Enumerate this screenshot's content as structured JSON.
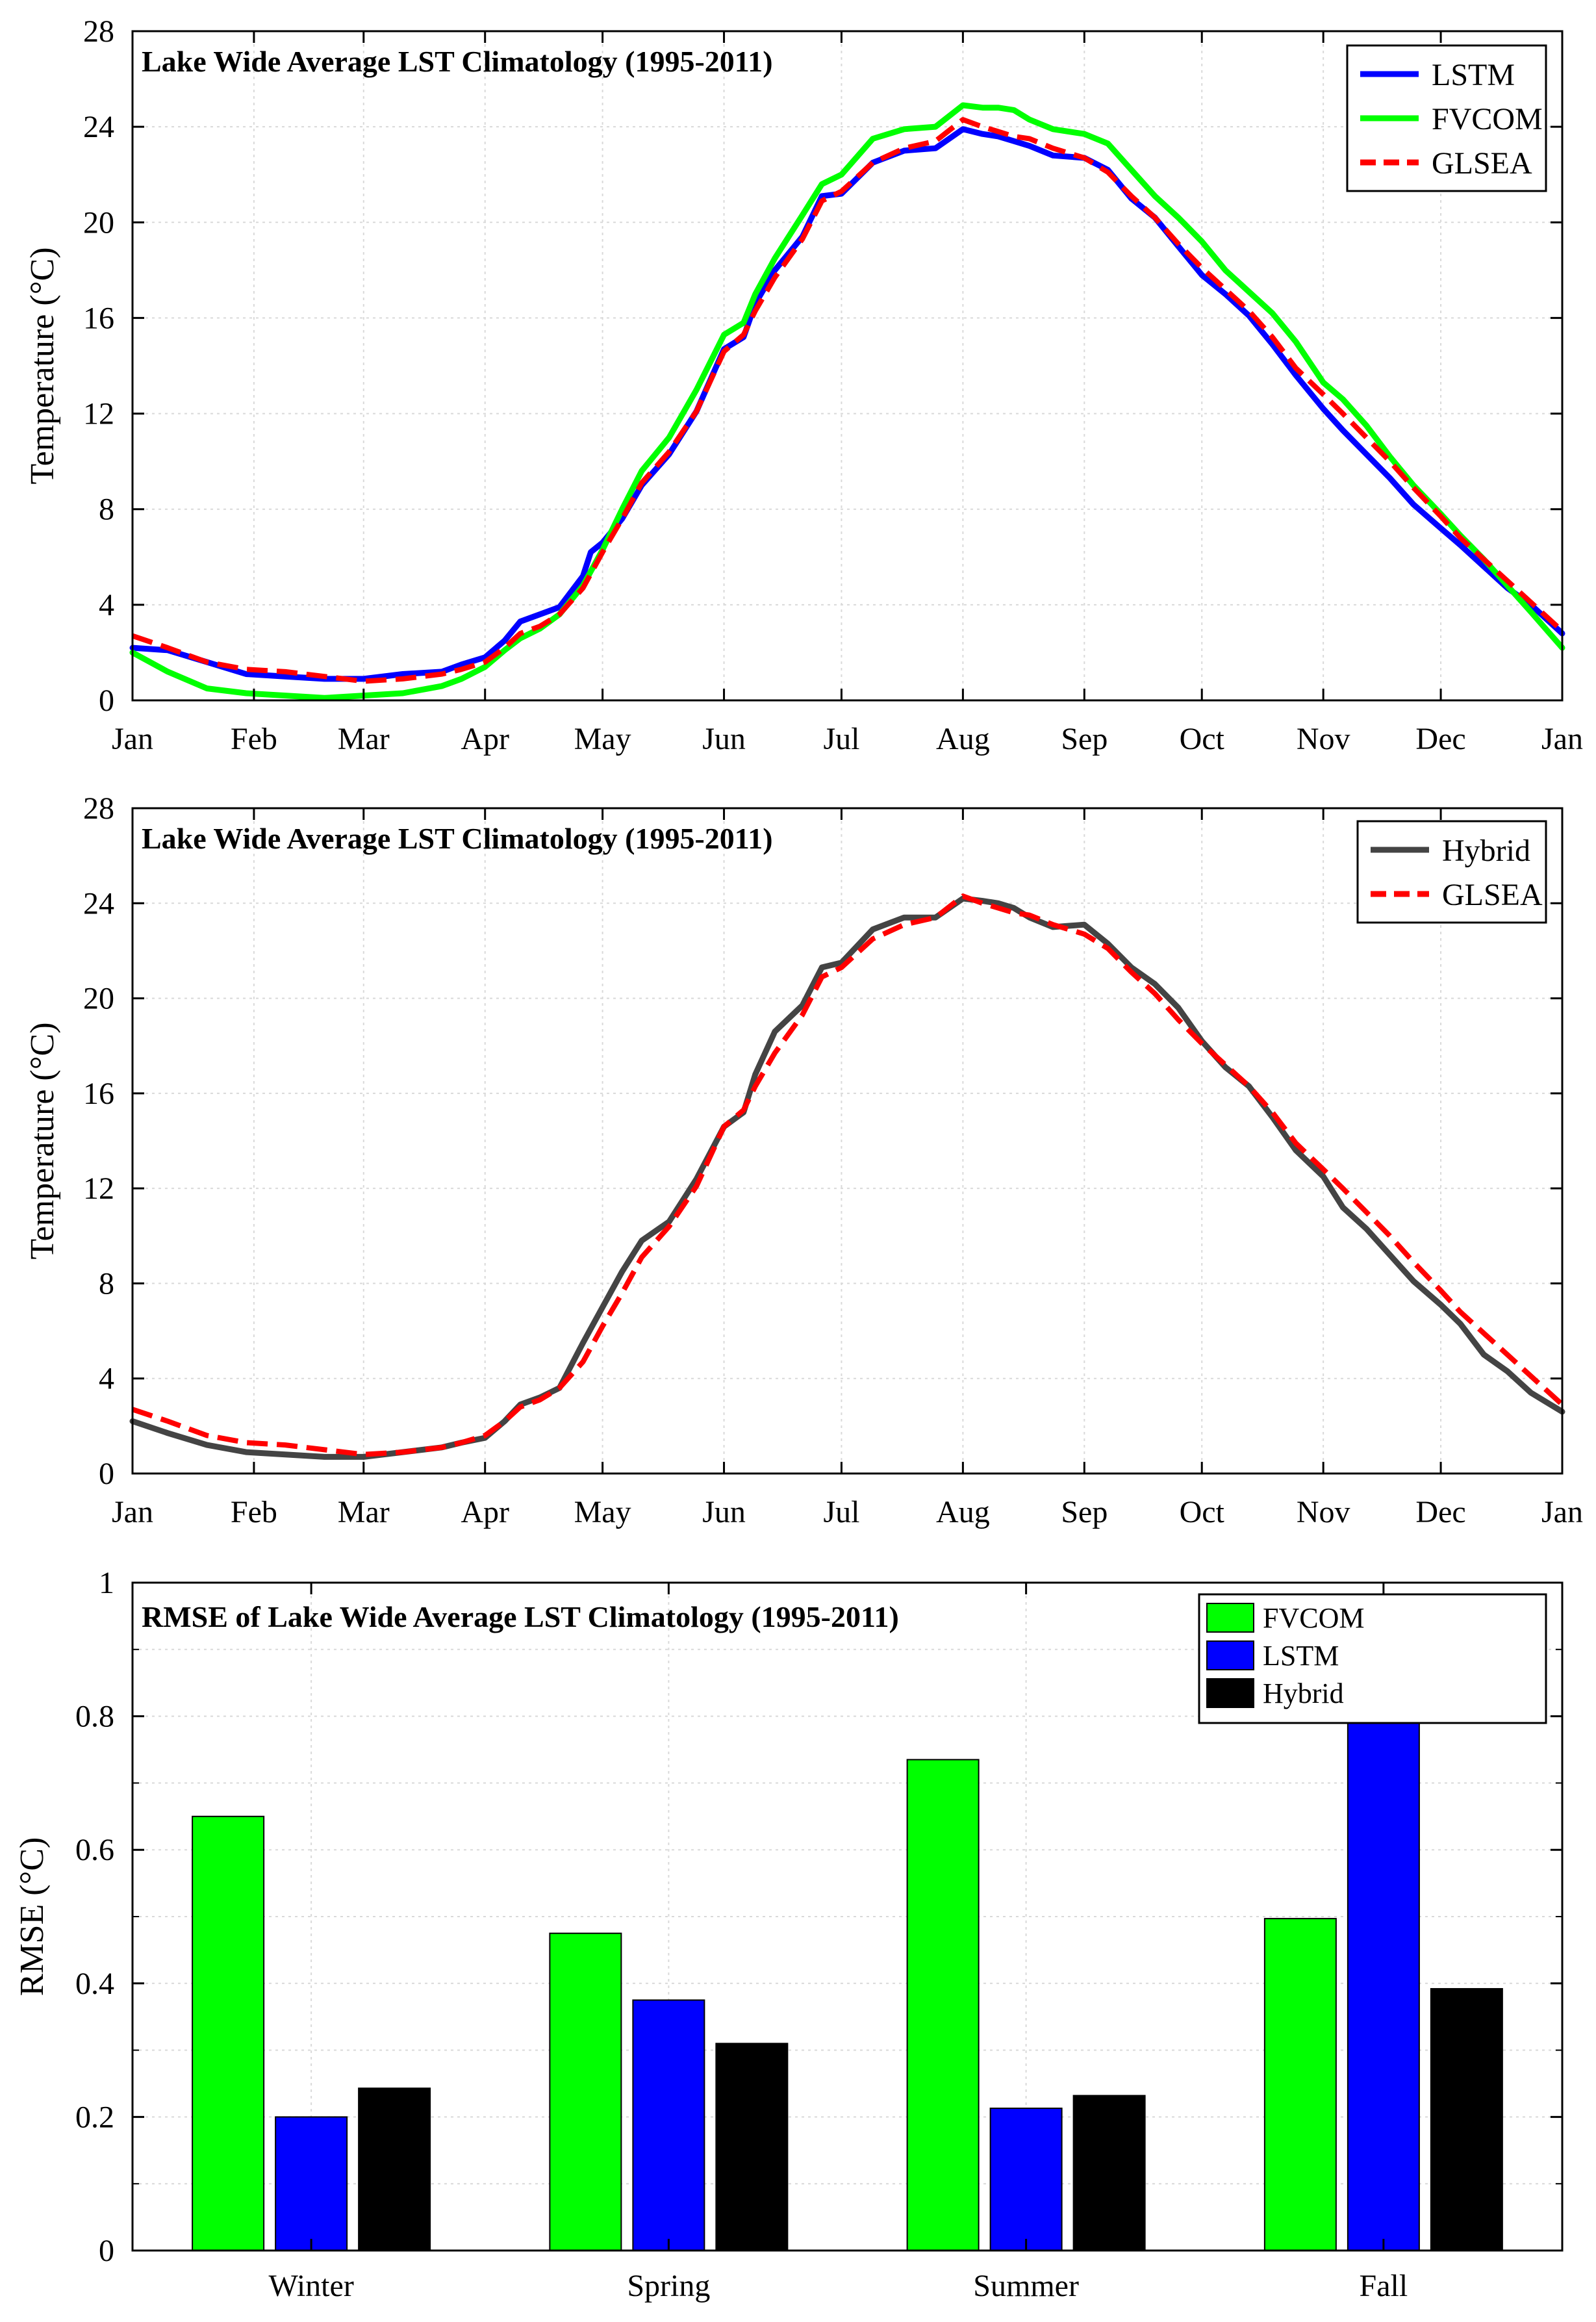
{
  "chart_data": [
    {
      "type": "line",
      "title": "Lake Wide Average LST Climatology (1995-2011)",
      "xlabel": "",
      "ylabel": "Temperature (°C)",
      "xlim": [
        1,
        366
      ],
      "ylim": [
        0,
        28
      ],
      "yticks": [
        0,
        4,
        8,
        12,
        16,
        20,
        24,
        28
      ],
      "xticks": [
        {
          "day": 1,
          "label": "Jan"
        },
        {
          "day": 32,
          "label": "Feb"
        },
        {
          "day": 60,
          "label": "Mar"
        },
        {
          "day": 91,
          "label": "Apr"
        },
        {
          "day": 121,
          "label": "May"
        },
        {
          "day": 152,
          "label": "Jun"
        },
        {
          "day": 182,
          "label": "Jul"
        },
        {
          "day": 213,
          "label": "Aug"
        },
        {
          "day": 244,
          "label": "Sep"
        },
        {
          "day": 274,
          "label": "Oct"
        },
        {
          "day": 305,
          "label": "Nov"
        },
        {
          "day": 335,
          "label": "Dec"
        },
        {
          "day": 366,
          "label": "Jan"
        }
      ],
      "grid": true,
      "legend_position": "top-right",
      "series": [
        {
          "name": "LSTM",
          "color": "#0000ff",
          "style": "solid",
          "x": [
            1,
            10,
            20,
            30,
            40,
            50,
            60,
            70,
            80,
            85,
            91,
            96,
            100,
            105,
            110,
            116,
            118,
            121,
            126,
            131,
            138,
            145,
            152,
            157,
            160,
            165,
            172,
            177,
            182,
            190,
            198,
            206,
            213,
            218,
            222,
            226,
            230,
            236,
            244,
            250,
            256,
            262,
            268,
            274,
            280,
            286,
            292,
            298,
            305,
            310,
            316,
            322,
            328,
            335,
            340,
            346,
            352,
            358,
            366
          ],
          "y": [
            2.2,
            2.1,
            1.6,
            1.1,
            1.0,
            0.9,
            0.9,
            1.1,
            1.2,
            1.5,
            1.8,
            2.5,
            3.3,
            3.6,
            3.9,
            5.2,
            6.2,
            6.6,
            7.6,
            9.0,
            10.3,
            12.1,
            14.7,
            15.2,
            16.6,
            18.0,
            19.4,
            21.1,
            21.2,
            22.5,
            23.0,
            23.1,
            23.9,
            23.7,
            23.6,
            23.4,
            23.2,
            22.8,
            22.7,
            22.2,
            21.0,
            20.2,
            19.0,
            17.8,
            17.0,
            16.1,
            14.9,
            13.6,
            12.2,
            11.3,
            10.3,
            9.3,
            8.2,
            7.2,
            6.5,
            5.6,
            4.7,
            4.0,
            2.8
          ]
        },
        {
          "name": "FVCOM",
          "color": "#00ff00",
          "style": "solid",
          "x": [
            1,
            10,
            20,
            30,
            40,
            50,
            60,
            70,
            80,
            85,
            91,
            96,
            100,
            105,
            110,
            116,
            121,
            126,
            131,
            138,
            145,
            152,
            157,
            160,
            165,
            172,
            177,
            182,
            190,
            198,
            206,
            213,
            218,
            222,
            226,
            230,
            236,
            244,
            250,
            256,
            262,
            268,
            274,
            280,
            286,
            292,
            298,
            305,
            310,
            316,
            322,
            328,
            335,
            340,
            346,
            352,
            358,
            366
          ],
          "y": [
            2.0,
            1.2,
            0.5,
            0.3,
            0.2,
            0.1,
            0.2,
            0.3,
            0.6,
            0.9,
            1.4,
            2.1,
            2.6,
            3.0,
            3.6,
            4.8,
            6.3,
            8.0,
            9.6,
            11.0,
            13.0,
            15.3,
            15.8,
            17.0,
            18.5,
            20.3,
            21.6,
            22.0,
            23.5,
            23.9,
            24.0,
            24.9,
            24.8,
            24.8,
            24.7,
            24.3,
            23.9,
            23.7,
            23.3,
            22.2,
            21.1,
            20.2,
            19.2,
            18.0,
            17.1,
            16.2,
            15.0,
            13.3,
            12.6,
            11.5,
            10.2,
            9.0,
            7.8,
            6.9,
            5.9,
            4.8,
            3.7,
            2.2
          ]
        },
        {
          "name": "GLSEA",
          "color": "#ff0000",
          "style": "dashed",
          "x": [
            1,
            10,
            20,
            30,
            40,
            50,
            60,
            70,
            80,
            85,
            91,
            96,
            100,
            105,
            110,
            116,
            121,
            126,
            131,
            138,
            145,
            152,
            157,
            160,
            165,
            172,
            177,
            182,
            190,
            198,
            206,
            213,
            218,
            222,
            226,
            230,
            236,
            244,
            250,
            256,
            262,
            268,
            274,
            280,
            286,
            292,
            298,
            305,
            310,
            316,
            322,
            328,
            335,
            340,
            346,
            352,
            358,
            366
          ],
          "y": [
            2.7,
            2.2,
            1.6,
            1.3,
            1.2,
            1.0,
            0.8,
            0.9,
            1.1,
            1.3,
            1.6,
            2.2,
            2.8,
            3.1,
            3.6,
            4.7,
            6.2,
            7.6,
            9.1,
            10.4,
            12.1,
            14.6,
            15.3,
            16.3,
            17.7,
            19.3,
            20.9,
            21.3,
            22.5,
            23.1,
            23.4,
            24.3,
            24.0,
            23.8,
            23.6,
            23.5,
            23.1,
            22.7,
            22.1,
            21.1,
            20.2,
            19.1,
            18.1,
            17.2,
            16.3,
            15.2,
            13.9,
            12.8,
            12.0,
            11.0,
            10.0,
            8.9,
            7.7,
            6.8,
            5.9,
            5.0,
            4.1,
            2.9
          ]
        }
      ]
    },
    {
      "type": "line",
      "title": "Lake Wide Average LST Climatology (1995-2011)",
      "xlabel": "",
      "ylabel": "Temperature (°C)",
      "xlim": [
        1,
        366
      ],
      "ylim": [
        0,
        28
      ],
      "yticks": [
        0,
        4,
        8,
        12,
        16,
        20,
        24,
        28
      ],
      "xticks": [
        {
          "day": 1,
          "label": "Jan"
        },
        {
          "day": 32,
          "label": "Feb"
        },
        {
          "day": 60,
          "label": "Mar"
        },
        {
          "day": 91,
          "label": "Apr"
        },
        {
          "day": 121,
          "label": "May"
        },
        {
          "day": 152,
          "label": "Jun"
        },
        {
          "day": 182,
          "label": "Jul"
        },
        {
          "day": 213,
          "label": "Aug"
        },
        {
          "day": 244,
          "label": "Sep"
        },
        {
          "day": 274,
          "label": "Oct"
        },
        {
          "day": 305,
          "label": "Nov"
        },
        {
          "day": 335,
          "label": "Dec"
        },
        {
          "day": 366,
          "label": "Jan"
        }
      ],
      "grid": true,
      "legend_position": "top-right",
      "series": [
        {
          "name": "Hybrid",
          "color": "#444444",
          "style": "solid",
          "x": [
            1,
            10,
            20,
            30,
            40,
            50,
            60,
            70,
            80,
            85,
            91,
            96,
            100,
            105,
            110,
            116,
            121,
            126,
            131,
            138,
            145,
            152,
            157,
            160,
            165,
            172,
            177,
            182,
            190,
            198,
            206,
            213,
            218,
            222,
            226,
            230,
            236,
            244,
            250,
            256,
            262,
            268,
            274,
            280,
            286,
            292,
            298,
            305,
            310,
            316,
            322,
            328,
            335,
            340,
            346,
            352,
            358,
            366
          ],
          "y": [
            2.2,
            1.7,
            1.2,
            0.9,
            0.8,
            0.7,
            0.7,
            0.9,
            1.1,
            1.3,
            1.5,
            2.2,
            2.9,
            3.2,
            3.6,
            5.5,
            7.0,
            8.5,
            9.8,
            10.6,
            12.4,
            14.6,
            15.2,
            16.8,
            18.6,
            19.7,
            21.3,
            21.5,
            22.9,
            23.4,
            23.4,
            24.2,
            24.1,
            24.0,
            23.8,
            23.4,
            23.0,
            23.1,
            22.3,
            21.3,
            20.6,
            19.6,
            18.2,
            17.1,
            16.3,
            15.0,
            13.6,
            12.5,
            11.2,
            10.3,
            9.2,
            8.1,
            7.1,
            6.3,
            5.0,
            4.3,
            3.4,
            2.6
          ]
        },
        {
          "name": "GLSEA",
          "color": "#ff0000",
          "style": "dashed",
          "x": [
            1,
            10,
            20,
            30,
            40,
            50,
            60,
            70,
            80,
            85,
            91,
            96,
            100,
            105,
            110,
            116,
            121,
            126,
            131,
            138,
            145,
            152,
            157,
            160,
            165,
            172,
            177,
            182,
            190,
            198,
            206,
            213,
            218,
            222,
            226,
            230,
            236,
            244,
            250,
            256,
            262,
            268,
            274,
            280,
            286,
            292,
            298,
            305,
            310,
            316,
            322,
            328,
            335,
            340,
            346,
            352,
            358,
            366
          ],
          "y": [
            2.7,
            2.2,
            1.6,
            1.3,
            1.2,
            1.0,
            0.8,
            0.9,
            1.1,
            1.3,
            1.6,
            2.2,
            2.8,
            3.1,
            3.6,
            4.7,
            6.2,
            7.6,
            9.1,
            10.4,
            12.1,
            14.6,
            15.3,
            16.3,
            17.7,
            19.3,
            20.9,
            21.3,
            22.5,
            23.1,
            23.4,
            24.3,
            24.0,
            23.8,
            23.6,
            23.5,
            23.1,
            22.7,
            22.1,
            21.1,
            20.2,
            19.1,
            18.1,
            17.2,
            16.3,
            15.2,
            13.9,
            12.8,
            12.0,
            11.0,
            10.0,
            8.9,
            7.7,
            6.8,
            5.9,
            5.0,
            4.1,
            2.9
          ]
        }
      ]
    },
    {
      "type": "bar",
      "title": "RMSE of Lake Wide Average LST Climatology (1995-2011)",
      "xlabel": "",
      "ylabel": "RMSE (°C)",
      "ylim": [
        0,
        1
      ],
      "yticks": [
        0,
        0.2,
        0.4,
        0.6,
        0.8,
        1
      ],
      "ytick_labels": [
        "0",
        "0.2",
        "0.4",
        "0.6",
        "0.8",
        "1"
      ],
      "grid": true,
      "legend_position": "top-right",
      "categories": [
        "Winter",
        "Spring",
        "Summer",
        "Fall"
      ],
      "series": [
        {
          "name": "FVCOM",
          "color": "#00ff00",
          "values": [
            0.65,
            0.475,
            0.735,
            0.497
          ]
        },
        {
          "name": "LSTM",
          "color": "#0000ff",
          "values": [
            0.2,
            0.375,
            0.213,
            0.793
          ]
        },
        {
          "name": "Hybrid",
          "color": "#000000",
          "values": [
            0.243,
            0.31,
            0.232,
            0.392
          ]
        }
      ]
    }
  ]
}
